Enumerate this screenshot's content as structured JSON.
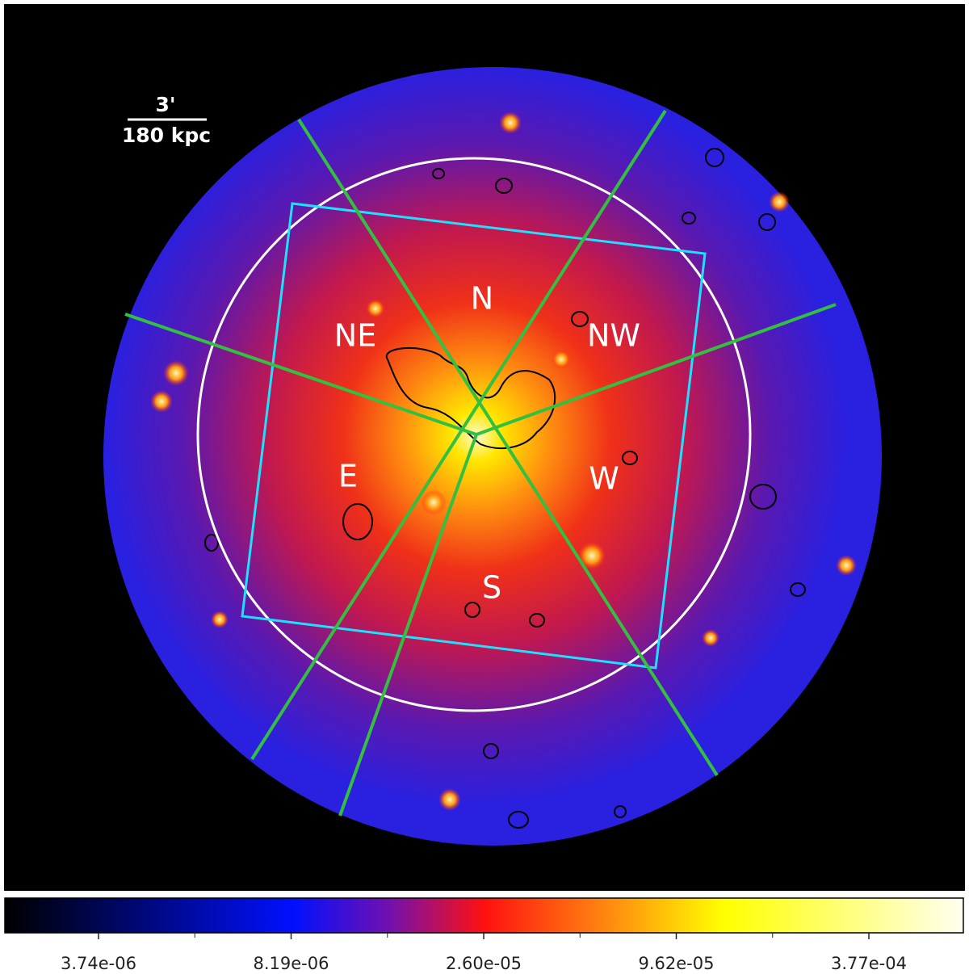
{
  "scale_bar": {
    "angle": "3'",
    "distance": "180 kpc"
  },
  "regions": [
    "N",
    "NE",
    "NW",
    "E",
    "W",
    "S"
  ],
  "colorbar": {
    "ticks": [
      "3.74e-06",
      "8.19e-06",
      "2.60e-05",
      "9.62e-05",
      "3.77e-04"
    ]
  }
}
